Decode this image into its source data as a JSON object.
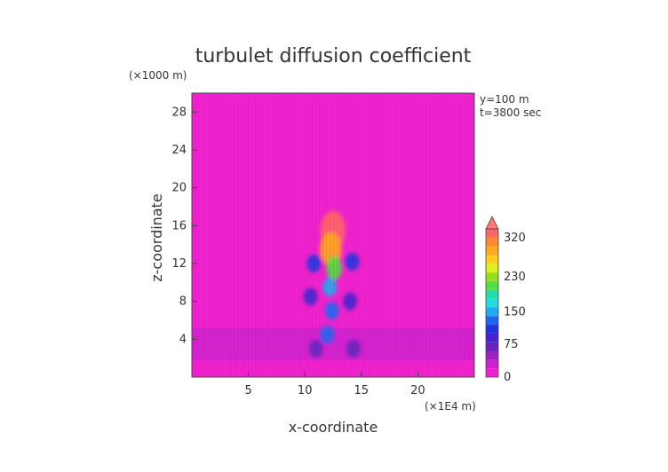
{
  "chart_data": {
    "type": "heatmap",
    "title": "turbulet diffusion coefficient",
    "xlabel": "x-coordinate",
    "ylabel": "z-coordinate",
    "x_unit": "(×1E4 m)",
    "y_unit": "(×1000 m)",
    "xlim": [
      0,
      25
    ],
    "ylim": [
      0,
      30
    ],
    "x_ticks": [
      5,
      10,
      15,
      20
    ],
    "y_ticks": [
      4,
      8,
      12,
      16,
      20,
      24,
      28
    ],
    "annotations": [
      "y=100 m",
      "t=3800 sec"
    ],
    "colorbar": {
      "ticks": [
        0,
        75,
        150,
        230,
        320
      ],
      "range": [
        0,
        340
      ],
      "extend": "max",
      "colors": [
        "#ee22cc",
        "#cc22cc",
        "#9922bb",
        "#6622bb",
        "#4422cc",
        "#2233dd",
        "#2266ee",
        "#22aaee",
        "#22dddd",
        "#22ddaa",
        "#55dd44",
        "#99dd22",
        "#ddee22",
        "#ffcc22",
        "#ffaa22",
        "#ff8833",
        "#ff6666",
        "#ff7777"
      ]
    },
    "background_value": 0,
    "layers": [
      {
        "name": "",
        "z_range": [
          1.8,
          5.2
        ],
        "value": 35
      },
      {
        "name": "",
        "z_range": [
          0.5,
          1.8
        ],
        "value": 15
      }
    ],
    "plume": [
      {
        "x": 12.5,
        "z": 15.5,
        "value": 320
      },
      {
        "x": 12.3,
        "z": 13.5,
        "value": 280
      },
      {
        "x": 12.6,
        "z": 11.5,
        "value": 200
      },
      {
        "x": 12.2,
        "z": 9.5,
        "value": 150
      },
      {
        "x": 12.4,
        "z": 7.0,
        "value": 130
      },
      {
        "x": 12.0,
        "z": 4.5,
        "value": 120
      },
      {
        "x": 10.8,
        "z": 12.0,
        "value": 110
      },
      {
        "x": 14.2,
        "z": 12.2,
        "value": 100
      },
      {
        "x": 10.5,
        "z": 8.5,
        "value": 90
      },
      {
        "x": 14.0,
        "z": 8.0,
        "value": 85
      },
      {
        "x": 11.0,
        "z": 3.0,
        "value": 70
      },
      {
        "x": 14.3,
        "z": 3.0,
        "value": 70
      }
    ]
  }
}
